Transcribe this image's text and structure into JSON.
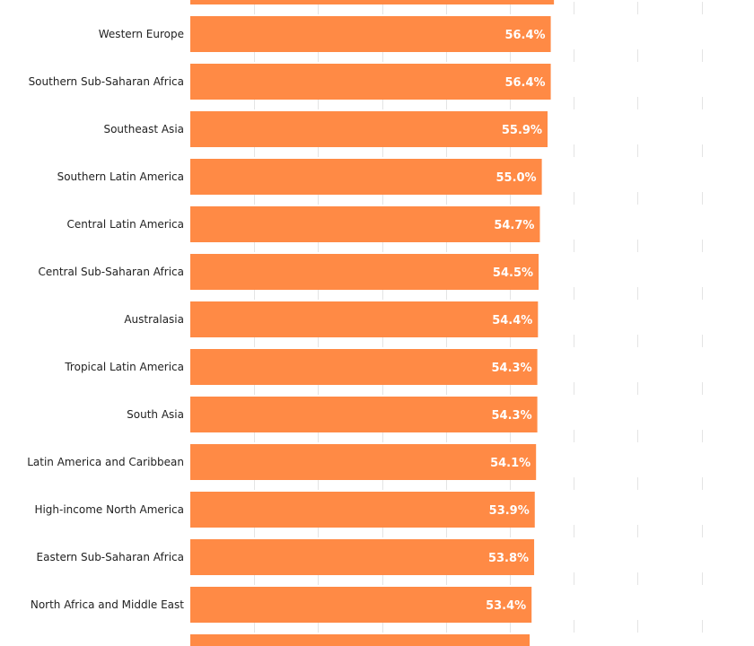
{
  "colors": {
    "bar": "#ff8a45",
    "grid": "#e4e4e4",
    "background": "#ffffff",
    "label_text": "#222222",
    "value_text": "#ffffff"
  },
  "chart_data": {
    "type": "bar",
    "orientation": "horizontal",
    "title": "",
    "xlabel": "",
    "ylabel": "",
    "grid": true,
    "xlim": [
      0,
      80
    ],
    "categories": [
      "Western Europe",
      "Southern Sub-Saharan Africa",
      "Southeast Asia",
      "Southern Latin America",
      "Central Latin America",
      "Central Sub-Saharan Africa",
      "Australasia",
      "Tropical Latin America",
      "South Asia",
      "Latin America and Caribbean",
      "High-income North America",
      "Eastern Sub-Saharan Africa",
      "North Africa and Middle East"
    ],
    "values": [
      56.4,
      56.4,
      55.9,
      55.0,
      54.7,
      54.5,
      54.4,
      54.3,
      54.3,
      54.1,
      53.9,
      53.8,
      53.4
    ],
    "value_labels": [
      "56.4%",
      "56.4%",
      "55.9%",
      "55.0%",
      "54.7%",
      "54.5%",
      "54.4%",
      "54.3%",
      "54.3%",
      "54.1%",
      "53.9%",
      "53.8%",
      "53.4%"
    ],
    "partial_bar_above": 56.9,
    "partial_bar_below": 53.1
  }
}
